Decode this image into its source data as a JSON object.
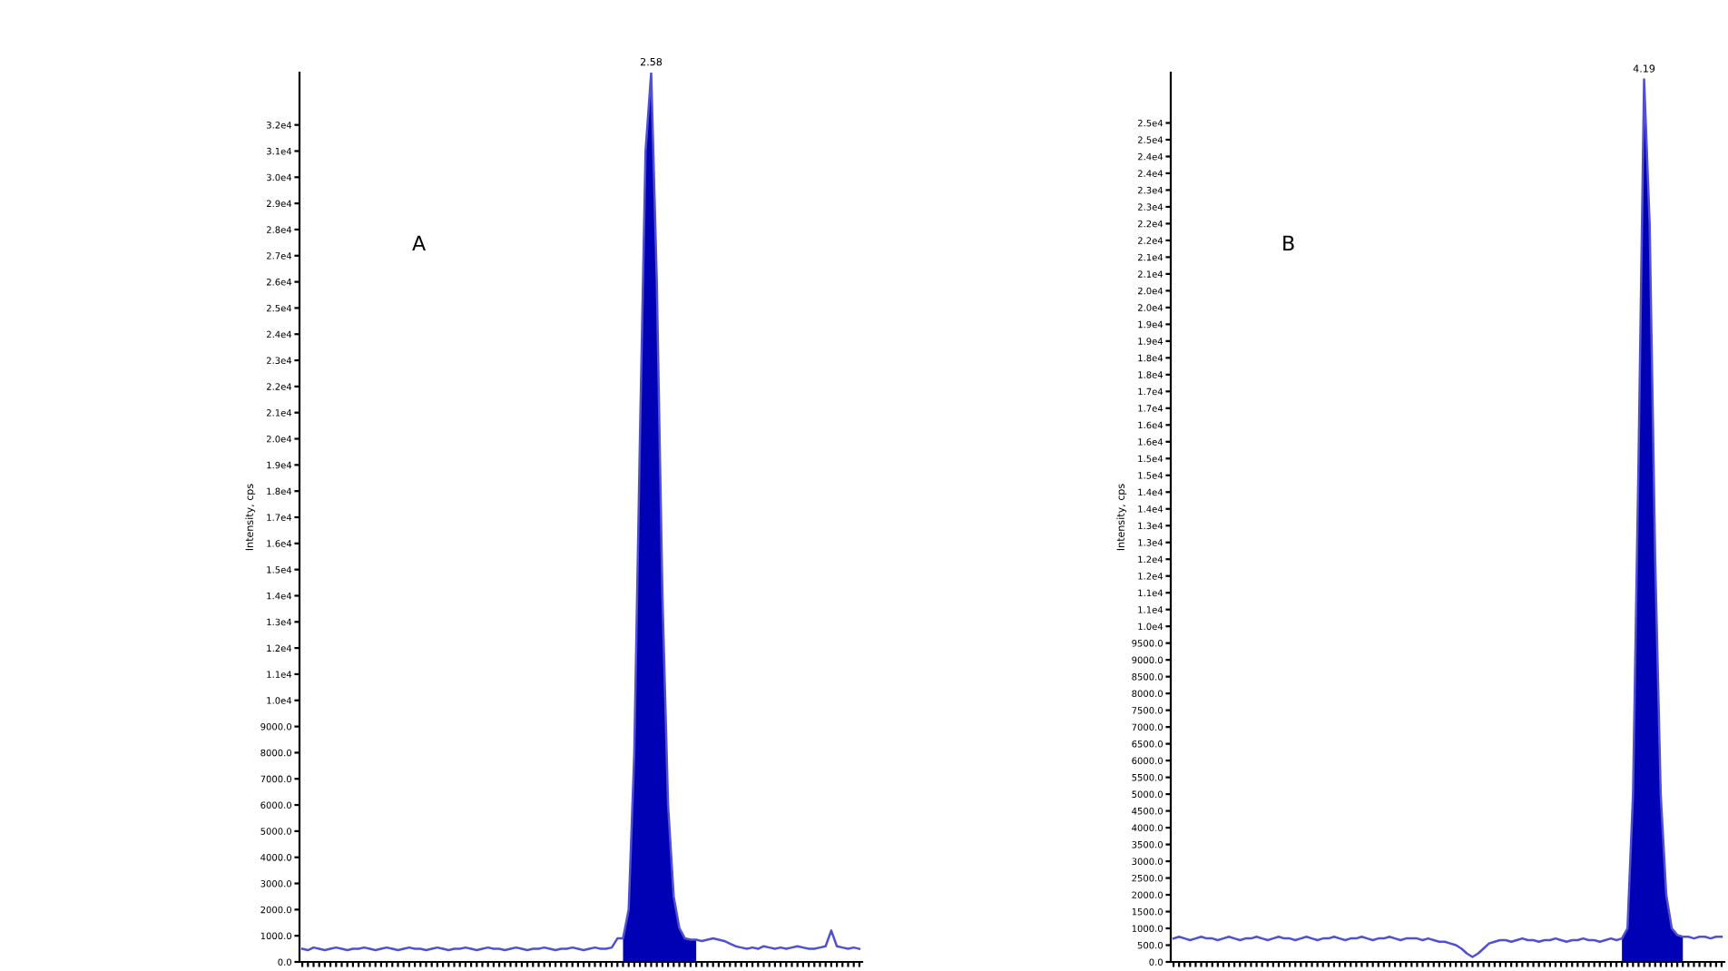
{
  "chart_data": [
    {
      "type": "line",
      "title": "A",
      "ylabel": "Intensity, cps",
      "categories": [
        null,
        null,
        null,
        null,
        null,
        null,
        null,
        null,
        null,
        null,
        null,
        null,
        null,
        null,
        null,
        null,
        null,
        null,
        null,
        null,
        null,
        null,
        null,
        null,
        null,
        null,
        null,
        null,
        null,
        null,
        null,
        null,
        null,
        null,
        null,
        null,
        null,
        null,
        null,
        null,
        null,
        null,
        null,
        null,
        null,
        null,
        null,
        null,
        null,
        null,
        null,
        null,
        null,
        null,
        null,
        null,
        null,
        null,
        null,
        null,
        null,
        null,
        null,
        null,
        null,
        null,
        null,
        null,
        null,
        null,
        null,
        null,
        null,
        null,
        null,
        null,
        null,
        null,
        null,
        null,
        null,
        null,
        null,
        null,
        null,
        null,
        null,
        null,
        null,
        null,
        null,
        null,
        null,
        null,
        null,
        null,
        null,
        null,
        null,
        null
      ],
      "series": [
        {
          "color": "#5050d0",
          "values": [
            500,
            450,
            550,
            500,
            450,
            500,
            550,
            500,
            450,
            500,
            500,
            550,
            500,
            450,
            500,
            550,
            500,
            450,
            500,
            550,
            500,
            500,
            450,
            500,
            550,
            500,
            450,
            500,
            500,
            550,
            500,
            450,
            500,
            550,
            500,
            500,
            450,
            500,
            550,
            500,
            450,
            500,
            500,
            550,
            500,
            450,
            500,
            500,
            550,
            500,
            450,
            500,
            550,
            500,
            500,
            550,
            900,
            900,
            2000,
            8000,
            20000,
            31000,
            34000,
            26000,
            14000,
            6000,
            2500,
            1300,
            900,
            850,
            850,
            800,
            850,
            900,
            850,
            800,
            700,
            600,
            550,
            500,
            550,
            500,
            600,
            550,
            500,
            550,
            500,
            550,
            600,
            550,
            500,
            500,
            550,
            600,
            1200,
            600,
            550,
            500,
            550,
            500
          ]
        },
        {
          "type": "area",
          "color": "#0000b4",
          "values": [
            null,
            null,
            null,
            null,
            null,
            null,
            null,
            null,
            null,
            null,
            null,
            null,
            null,
            null,
            null,
            null,
            null,
            null,
            null,
            null,
            null,
            null,
            null,
            null,
            null,
            null,
            null,
            null,
            null,
            null,
            null,
            null,
            null,
            null,
            null,
            null,
            null,
            null,
            null,
            null,
            null,
            null,
            null,
            null,
            null,
            null,
            null,
            null,
            null,
            null,
            null,
            null,
            null,
            null,
            null,
            null,
            null,
            900,
            2000,
            8000,
            20000,
            31000,
            34000,
            26000,
            14000,
            6000,
            2500,
            1300,
            900,
            850,
            850,
            null,
            null,
            null,
            null,
            null,
            null,
            null,
            null,
            null,
            null,
            null,
            null,
            null,
            null,
            null,
            null,
            null,
            null,
            null,
            null,
            null,
            null,
            null,
            null,
            null,
            null,
            null,
            null,
            null
          ]
        }
      ],
      "ylim": [
        0,
        34000
      ],
      "yticks": [
        {
          "value": 0,
          "label": "0.0"
        },
        {
          "value": 1000,
          "label": "1000.0"
        },
        {
          "value": 2000,
          "label": "2000.0"
        },
        {
          "value": 3000,
          "label": "3000.0"
        },
        {
          "value": 4000,
          "label": "4000.0"
        },
        {
          "value": 5000,
          "label": "5000.0"
        },
        {
          "value": 6000,
          "label": "6000.0"
        },
        {
          "value": 7000,
          "label": "7000.0"
        },
        {
          "value": 8000,
          "label": "8000.0"
        },
        {
          "value": 9000,
          "label": "9000.0"
        },
        {
          "value": 10000,
          "label": "1.0e4"
        },
        {
          "value": 11000,
          "label": "1.1e4"
        },
        {
          "value": 12000,
          "label": "1.2e4"
        },
        {
          "value": 13000,
          "label": "1.3e4"
        },
        {
          "value": 14000,
          "label": "1.4e4"
        },
        {
          "value": 15000,
          "label": "1.5e4"
        },
        {
          "value": 16000,
          "label": "1.6e4"
        },
        {
          "value": 17000,
          "label": "1.7e4"
        },
        {
          "value": 18000,
          "label": "1.8e4"
        },
        {
          "value": 19000,
          "label": "1.9e4"
        },
        {
          "value": 20000,
          "label": "2.0e4"
        },
        {
          "value": 21000,
          "label": "2.1e4"
        },
        {
          "value": 22000,
          "label": "2.2e4"
        },
        {
          "value": 23000,
          "label": "2.3e4"
        },
        {
          "value": 24000,
          "label": "2.4e4"
        },
        {
          "value": 25000,
          "label": "2.5e4"
        },
        {
          "value": 26000,
          "label": "2.6e4"
        },
        {
          "value": 27000,
          "label": "2.7e4"
        },
        {
          "value": 28000,
          "label": "2.8e4"
        },
        {
          "value": 29000,
          "label": "2.9e4"
        },
        {
          "value": 30000,
          "label": "3.0e4"
        },
        {
          "value": 31000,
          "label": "3.1e4"
        },
        {
          "value": 32000,
          "label": "3.2e4"
        }
      ],
      "annotations": [
        {
          "text": "2.58",
          "y": 34000
        }
      ],
      "grid": false,
      "legend": false
    },
    {
      "type": "line",
      "title": "B",
      "ylabel": "Intensity, cps",
      "categories": [
        null,
        null,
        null,
        null,
        null,
        null,
        null,
        null,
        null,
        null,
        null,
        null,
        null,
        null,
        null,
        null,
        null,
        null,
        null,
        null,
        null,
        null,
        null,
        null,
        null,
        null,
        null,
        null,
        null,
        null,
        null,
        null,
        null,
        null,
        null,
        null,
        null,
        null,
        null,
        null,
        null,
        null,
        null,
        null,
        null,
        null,
        null,
        null,
        null,
        null,
        null,
        null,
        null,
        null,
        null,
        null,
        null,
        null,
        null,
        null,
        null,
        null,
        null,
        null,
        null,
        null,
        null,
        null,
        null,
        null,
        null,
        null,
        null,
        null,
        null,
        null,
        null,
        null,
        null,
        null,
        null,
        null,
        null,
        null,
        null,
        null,
        null,
        null,
        null,
        null,
        null,
        null,
        null,
        null,
        null,
        null,
        null,
        null,
        null,
        null
      ],
      "series": [
        {
          "color": "#5050d0",
          "values": [
            700,
            750,
            700,
            650,
            700,
            750,
            700,
            700,
            650,
            700,
            750,
            700,
            650,
            700,
            700,
            750,
            700,
            650,
            700,
            750,
            700,
            700,
            650,
            700,
            750,
            700,
            650,
            700,
            700,
            750,
            700,
            650,
            700,
            700,
            750,
            700,
            650,
            700,
            700,
            750,
            700,
            650,
            700,
            700,
            700,
            650,
            700,
            650,
            600,
            600,
            550,
            500,
            400,
            250,
            150,
            250,
            400,
            550,
            600,
            650,
            650,
            600,
            650,
            700,
            650,
            650,
            600,
            650,
            650,
            700,
            650,
            600,
            650,
            650,
            700,
            650,
            650,
            600,
            650,
            700,
            650,
            700,
            1000,
            5000,
            15000,
            26300,
            22000,
            12000,
            5000,
            2000,
            1000,
            800,
            750,
            750,
            700,
            750,
            750,
            700,
            750,
            750
          ]
        },
        {
          "type": "area",
          "color": "#0000b4",
          "values": [
            null,
            null,
            null,
            null,
            null,
            null,
            null,
            null,
            null,
            null,
            null,
            null,
            null,
            null,
            null,
            null,
            null,
            null,
            null,
            null,
            null,
            null,
            null,
            null,
            null,
            null,
            null,
            null,
            null,
            null,
            null,
            null,
            null,
            null,
            null,
            null,
            null,
            null,
            null,
            null,
            null,
            null,
            null,
            null,
            null,
            null,
            null,
            null,
            null,
            null,
            null,
            null,
            null,
            null,
            null,
            null,
            null,
            null,
            null,
            null,
            null,
            null,
            null,
            null,
            null,
            null,
            null,
            null,
            null,
            null,
            null,
            null,
            null,
            null,
            null,
            null,
            null,
            null,
            null,
            null,
            null,
            700,
            1000,
            5000,
            15000,
            26300,
            22000,
            12000,
            5000,
            2000,
            1000,
            800,
            750,
            null,
            null,
            null,
            null,
            null,
            null,
            null
          ]
        }
      ],
      "ylim": [
        0,
        26500
      ],
      "yticks": [
        {
          "value": 0,
          "label": "0.0"
        },
        {
          "value": 500,
          "label": "500.0"
        },
        {
          "value": 1000,
          "label": "1000.0"
        },
        {
          "value": 1500,
          "label": "1500.0"
        },
        {
          "value": 2000,
          "label": "2000.0"
        },
        {
          "value": 2500,
          "label": "2500.0"
        },
        {
          "value": 3000,
          "label": "3000.0"
        },
        {
          "value": 3500,
          "label": "3500.0"
        },
        {
          "value": 4000,
          "label": "4000.0"
        },
        {
          "value": 4500,
          "label": "4500.0"
        },
        {
          "value": 5000,
          "label": "5000.0"
        },
        {
          "value": 5500,
          "label": "5500.0"
        },
        {
          "value": 6000,
          "label": "6000.0"
        },
        {
          "value": 6500,
          "label": "6500.0"
        },
        {
          "value": 7000,
          "label": "7000.0"
        },
        {
          "value": 7500,
          "label": "7500.0"
        },
        {
          "value": 8000,
          "label": "8000.0"
        },
        {
          "value": 8500,
          "label": "8500.0"
        },
        {
          "value": 9000,
          "label": "9000.0"
        },
        {
          "value": 9500,
          "label": "9500.0"
        },
        {
          "value": 10000,
          "label": "1.0e4"
        },
        {
          "value": 10500,
          "label": "1.1e4"
        },
        {
          "value": 11000,
          "label": "1.1e4"
        },
        {
          "value": 11500,
          "label": "1.2e4"
        },
        {
          "value": 12000,
          "label": "1.2e4"
        },
        {
          "value": 12500,
          "label": "1.3e4"
        },
        {
          "value": 13000,
          "label": "1.3e4"
        },
        {
          "value": 13500,
          "label": "1.4e4"
        },
        {
          "value": 14000,
          "label": "1.4e4"
        },
        {
          "value": 14500,
          "label": "1.5e4"
        },
        {
          "value": 15000,
          "label": "1.5e4"
        },
        {
          "value": 15500,
          "label": "1.6e4"
        },
        {
          "value": 16000,
          "label": "1.6e4"
        },
        {
          "value": 16500,
          "label": "1.7e4"
        },
        {
          "value": 17000,
          "label": "1.7e4"
        },
        {
          "value": 17500,
          "label": "1.8e4"
        },
        {
          "value": 18000,
          "label": "1.8e4"
        },
        {
          "value": 18500,
          "label": "1.9e4"
        },
        {
          "value": 19000,
          "label": "1.9e4"
        },
        {
          "value": 19500,
          "label": "2.0e4"
        },
        {
          "value": 20000,
          "label": "2.0e4"
        },
        {
          "value": 20500,
          "label": "2.1e4"
        },
        {
          "value": 21000,
          "label": "2.1e4"
        },
        {
          "value": 21500,
          "label": "2.2e4"
        },
        {
          "value": 22000,
          "label": "2.2e4"
        },
        {
          "value": 22500,
          "label": "2.3e4"
        },
        {
          "value": 23000,
          "label": "2.3e4"
        },
        {
          "value": 23500,
          "label": "2.4e4"
        },
        {
          "value": 24000,
          "label": "2.4e4"
        },
        {
          "value": 24500,
          "label": "2.5e4"
        },
        {
          "value": 25000,
          "label": "2.5e4"
        }
      ],
      "annotations": [
        {
          "text": "4.19",
          "y": 26300
        }
      ],
      "grid": false,
      "legend": false
    }
  ]
}
